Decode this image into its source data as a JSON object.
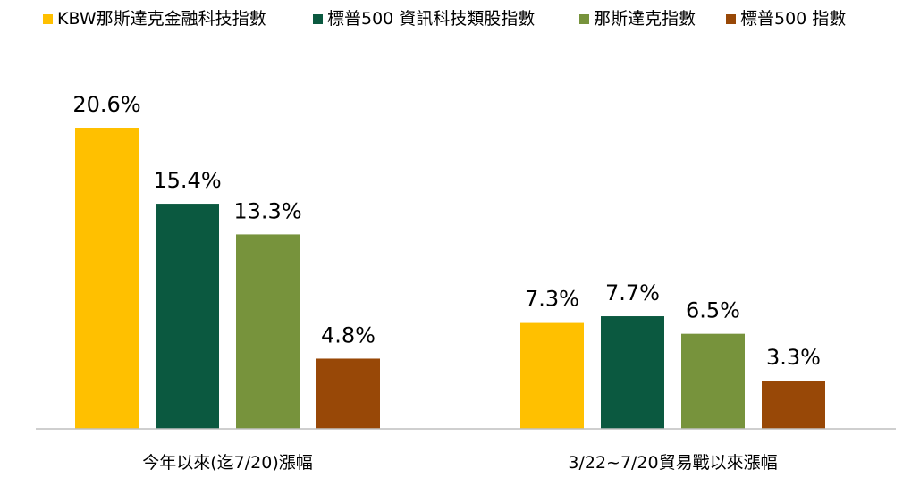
{
  "chart_data": {
    "type": "bar",
    "title": "",
    "xlabel": "",
    "ylabel": "",
    "categories": [
      "今年以來(迄7/20)漲幅",
      "3/22~7/20貿易戰以來漲幅"
    ],
    "series": [
      {
        "name": "KBW那斯達克金融科技指數",
        "color": "#FFC000",
        "values": [
          20.6,
          7.3
        ],
        "labels": [
          "20.6%",
          "7.3%"
        ]
      },
      {
        "name": "標普500 資訊科技類股指數",
        "color": "#0B5940",
        "values": [
          15.4,
          7.7
        ],
        "labels": [
          "15.4%",
          "7.7%"
        ]
      },
      {
        "name": "那斯達克指數",
        "color": "#77933C",
        "values": [
          13.3,
          6.5
        ],
        "labels": [
          "13.3%",
          "6.5%"
        ]
      },
      {
        "name": "標普500 指數",
        "color": "#984807",
        "values": [
          4.8,
          3.3
        ],
        "labels": [
          "4.8%",
          "3.3%"
        ]
      }
    ],
    "ylim": [
      0,
      20.6
    ],
    "y_axis_visible": false,
    "grid": false,
    "legend_position": "top"
  },
  "colors": {
    "baseline": "#BFBFBF",
    "text": "#000000"
  }
}
